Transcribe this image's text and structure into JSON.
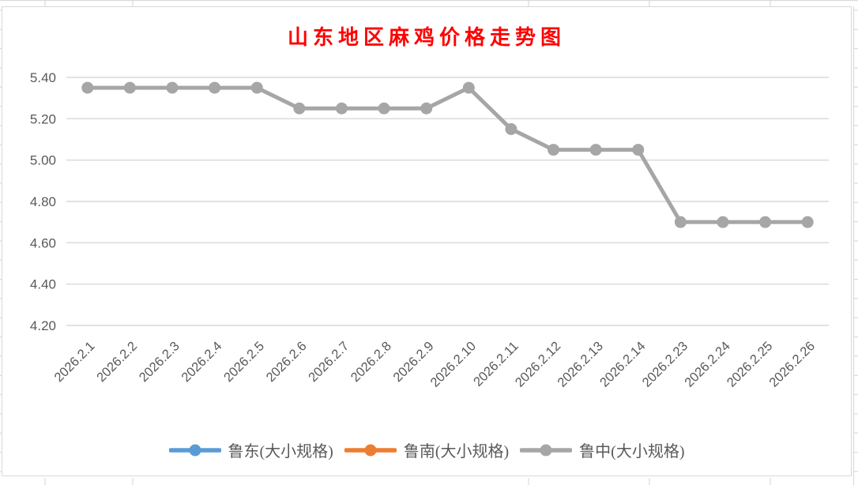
{
  "chart_data": {
    "type": "line",
    "title": "山东地区麻鸡价格走势图",
    "title_color": "#FF0000",
    "categories": [
      "2026.2.1",
      "2026.2.2",
      "2026.2.3",
      "2026.2.4",
      "2026.2.5",
      "2026.2.6",
      "2026.2.7",
      "2026.2.8",
      "2026.2.9",
      "2026.2.10",
      "2026.2.11",
      "2026.2.12",
      "2026.2.13",
      "2026.2.14",
      "2026.2.23",
      "2026.2.24",
      "2026.2.25",
      "2026.2.26"
    ],
    "series": [
      {
        "name": "鲁东(大小规格)",
        "color": "#5B9BD5",
        "values": null
      },
      {
        "name": "鲁南(大小规格)",
        "color": "#ED7D31",
        "values": null
      },
      {
        "name": "鲁中(大小规格)",
        "color": "#A6A6A6",
        "values": [
          5.35,
          5.35,
          5.35,
          5.35,
          5.35,
          5.25,
          5.25,
          5.25,
          5.25,
          5.35,
          5.15,
          5.05,
          5.05,
          5.05,
          4.7,
          4.7,
          4.7,
          4.7
        ]
      }
    ],
    "ylim": [
      4.2,
      5.4
    ],
    "ytick_step": 0.2,
    "yticks": [
      "5.40",
      "5.20",
      "5.00",
      "4.80",
      "4.60",
      "4.40",
      "4.20"
    ],
    "xlabel": "",
    "ylabel": "",
    "grid": "horizontal",
    "legend_position": "bottom",
    "gridline_color": "#D9D9D9",
    "axis_label_color": "#595959"
  }
}
